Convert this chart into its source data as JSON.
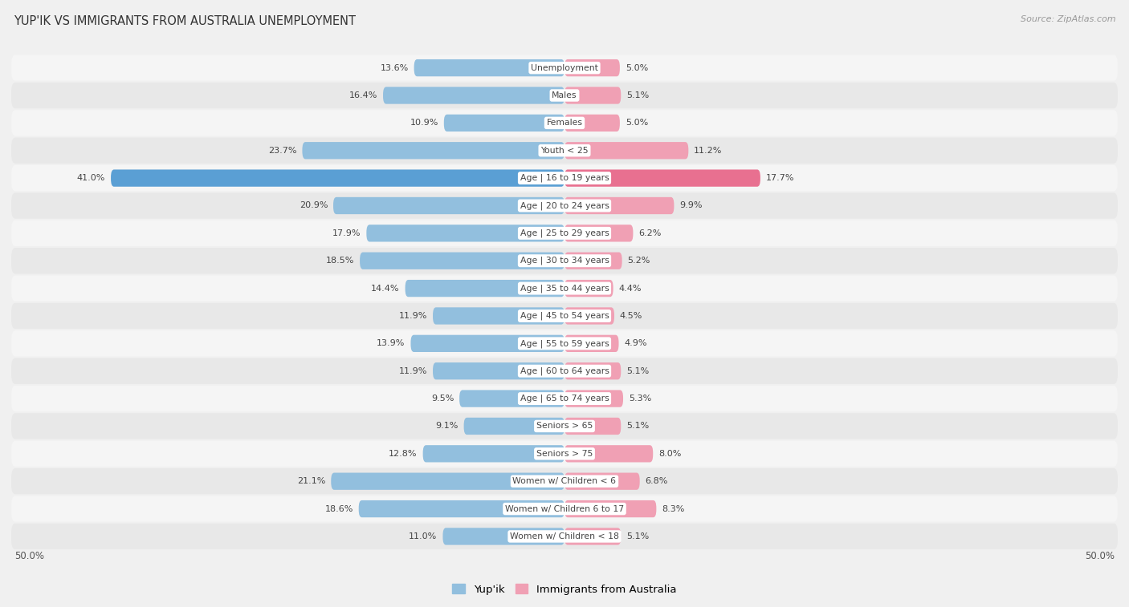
{
  "title": "Yup'ik vs Immigrants from Australia Unemployment",
  "source": "Source: ZipAtlas.com",
  "categories": [
    "Unemployment",
    "Males",
    "Females",
    "Youth < 25",
    "Age | 16 to 19 years",
    "Age | 20 to 24 years",
    "Age | 25 to 29 years",
    "Age | 30 to 34 years",
    "Age | 35 to 44 years",
    "Age | 45 to 54 years",
    "Age | 55 to 59 years",
    "Age | 60 to 64 years",
    "Age | 65 to 74 years",
    "Seniors > 65",
    "Seniors > 75",
    "Women w/ Children < 6",
    "Women w/ Children 6 to 17",
    "Women w/ Children < 18"
  ],
  "yupik_values": [
    13.6,
    16.4,
    10.9,
    23.7,
    41.0,
    20.9,
    17.9,
    18.5,
    14.4,
    11.9,
    13.9,
    11.9,
    9.5,
    9.1,
    12.8,
    21.1,
    18.6,
    11.0
  ],
  "australia_values": [
    5.0,
    5.1,
    5.0,
    11.2,
    17.7,
    9.9,
    6.2,
    5.2,
    4.4,
    4.5,
    4.9,
    5.1,
    5.3,
    5.1,
    8.0,
    6.8,
    8.3,
    5.1
  ],
  "yupik_color": "#92bfde",
  "australia_color": "#f0a0b4",
  "yupik_highlight_color": "#5a9fd4",
  "australia_highlight_color": "#e87090",
  "background_color": "#f0f0f0",
  "row_colors": [
    "#f5f5f5",
    "#e8e8e8"
  ],
  "bar_height": 0.62,
  "legend_yupik": "Yup'ik",
  "legend_australia": "Immigrants from Australia",
  "axis_label": "50.0%",
  "max_val": 50.0,
  "label_bg_color": "#ffffff",
  "label_text_color": "#444444",
  "value_text_color": "#444444",
  "title_color": "#333333",
  "source_color": "#999999"
}
